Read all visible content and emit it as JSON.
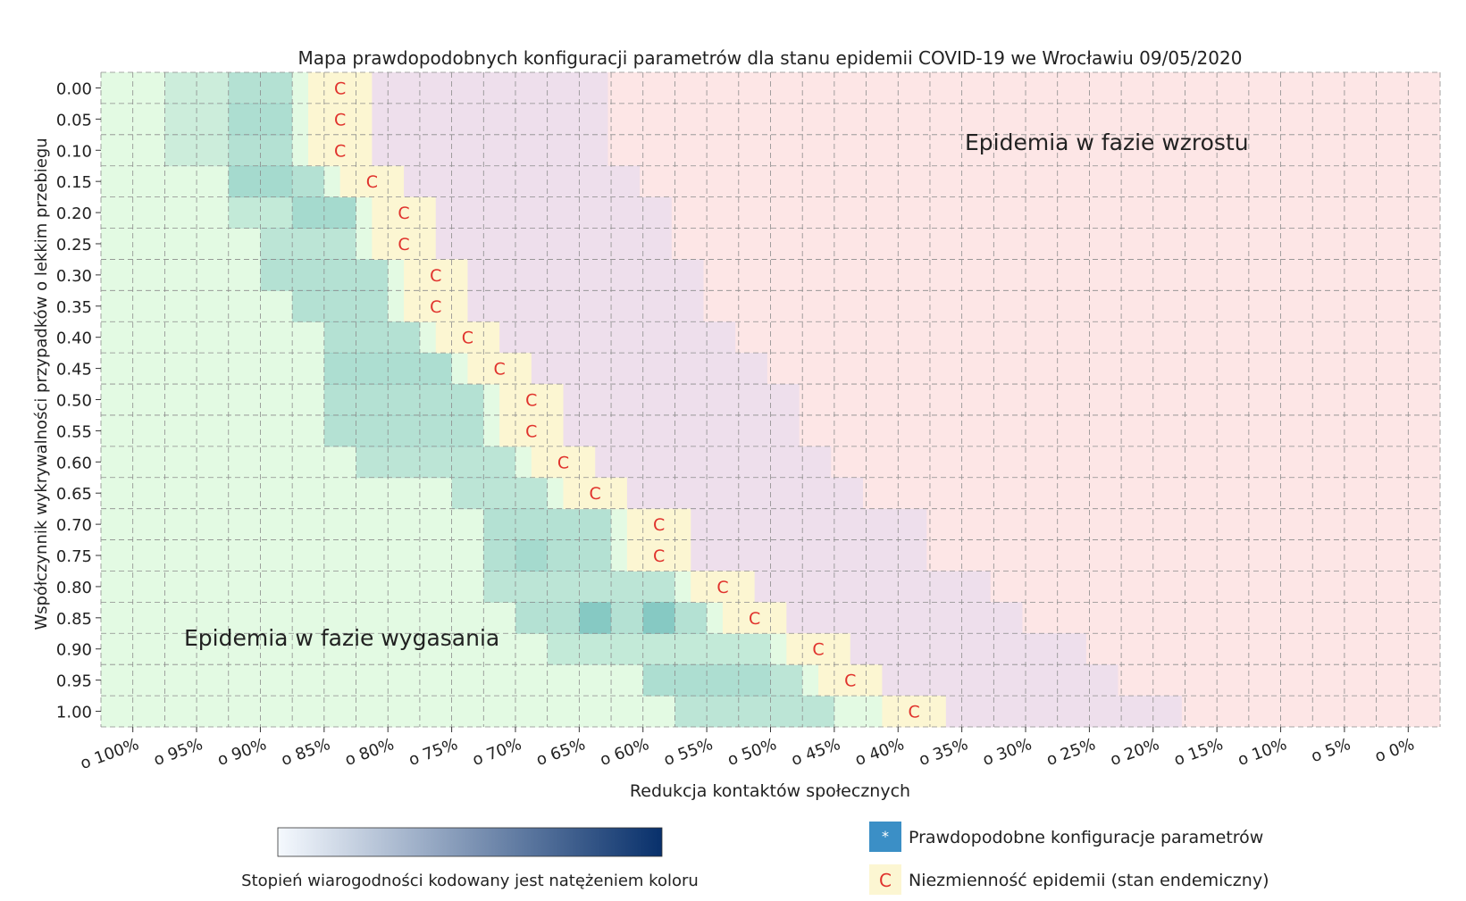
{
  "chart_data": {
    "type": "heatmap",
    "title": "Mapa prawdopodobnych konfiguracji parametrów dla stanu epidemii COVID-19 we Wrocławiu 09/05/2020",
    "xlabel": "Redukcja kontaktów społecznych",
    "ylabel": "Współczynnik wykrywalności przypadków o lekkim przebiegu",
    "x_tick_labels": [
      "o 100%",
      "o 95%",
      "o 90%",
      "o 85%",
      "o 80%",
      "o 75%",
      "o 70%",
      "o 65%",
      "o 60%",
      "o 55%",
      "o 50%",
      "o 45%",
      "o 40%",
      "o 35%",
      "o 30%",
      "o 25%",
      "o 20%",
      "o 15%",
      "o 10%",
      "o 5%",
      "o 0%"
    ],
    "x_values": [
      100,
      95,
      90,
      85,
      80,
      75,
      70,
      65,
      60,
      55,
      50,
      45,
      40,
      35,
      30,
      25,
      20,
      15,
      10,
      5,
      0
    ],
    "y_tick_labels": [
      "0.00",
      "0.05",
      "0.10",
      "0.15",
      "0.20",
      "0.25",
      "0.30",
      "0.35",
      "0.40",
      "0.45",
      "0.50",
      "0.55",
      "0.60",
      "0.65",
      "0.70",
      "0.75",
      "0.80",
      "0.85",
      "0.90",
      "0.95",
      "1.00"
    ],
    "y_values": [
      0.0,
      0.05,
      0.1,
      0.15,
      0.2,
      0.25,
      0.3,
      0.35,
      0.4,
      0.45,
      0.5,
      0.55,
      0.6,
      0.65,
      0.7,
      0.75,
      0.8,
      0.85,
      0.9,
      0.95,
      1.0
    ],
    "endemic_boundary_reduction": [
      83.75,
      83.75,
      83.75,
      81.25,
      78.75,
      78.75,
      76.25,
      76.25,
      73.75,
      71.25,
      68.75,
      68.75,
      66.25,
      63.75,
      58.75,
      58.75,
      53.75,
      51.25,
      46.25,
      43.75,
      38.75
    ],
    "endemic_marker": "C",
    "region_labels": {
      "growth": "Epidemia w fazie wzrostu",
      "decline": "Epidemia w fazie wygasania"
    },
    "likelihood_cells": [
      {
        "y": 0.0,
        "x_from": 95,
        "x_to": 90,
        "level": 0.15
      },
      {
        "y": 0.0,
        "x_from": 90,
        "x_to": 85,
        "level": 0.3
      },
      {
        "y": 0.05,
        "x_from": 95,
        "x_to": 90,
        "level": 0.15
      },
      {
        "y": 0.05,
        "x_from": 90,
        "x_to": 85,
        "level": 0.35
      },
      {
        "y": 0.1,
        "x_from": 95,
        "x_to": 90,
        "level": 0.15
      },
      {
        "y": 0.1,
        "x_from": 90,
        "x_to": 85,
        "level": 0.3
      },
      {
        "y": 0.15,
        "x_from": 90,
        "x_to": 85,
        "level": 0.4
      },
      {
        "y": 0.15,
        "x_from": 85,
        "x_to": 82.5,
        "level": 0.3
      },
      {
        "y": 0.2,
        "x_from": 90,
        "x_to": 85,
        "level": 0.2
      },
      {
        "y": 0.2,
        "x_from": 85,
        "x_to": 80,
        "level": 0.4
      },
      {
        "y": 0.25,
        "x_from": 87.5,
        "x_to": 80,
        "level": 0.25
      },
      {
        "y": 0.3,
        "x_from": 87.5,
        "x_to": 77.5,
        "level": 0.3
      },
      {
        "y": 0.35,
        "x_from": 85,
        "x_to": 77.5,
        "level": 0.3
      },
      {
        "y": 0.4,
        "x_from": 82.5,
        "x_to": 75,
        "level": 0.3
      },
      {
        "y": 0.45,
        "x_from": 82.5,
        "x_to": 72.5,
        "level": 0.35
      },
      {
        "y": 0.5,
        "x_from": 82.5,
        "x_to": 70,
        "level": 0.3
      },
      {
        "y": 0.55,
        "x_from": 82.5,
        "x_to": 70,
        "level": 0.3
      },
      {
        "y": 0.6,
        "x_from": 80,
        "x_to": 67.5,
        "level": 0.25
      },
      {
        "y": 0.65,
        "x_from": 72.5,
        "x_to": 65,
        "level": 0.25
      },
      {
        "y": 0.7,
        "x_from": 70,
        "x_to": 60,
        "level": 0.3
      },
      {
        "y": 0.75,
        "x_from": 70,
        "x_to": 67.5,
        "level": 0.3
      },
      {
        "y": 0.75,
        "x_from": 67.5,
        "x_to": 65,
        "level": 0.4
      },
      {
        "y": 0.75,
        "x_from": 65,
        "x_to": 60,
        "level": 0.3
      },
      {
        "y": 0.8,
        "x_from": 70,
        "x_to": 55,
        "level": 0.25
      },
      {
        "y": 0.85,
        "x_from": 67.5,
        "x_to": 62.5,
        "level": 0.3
      },
      {
        "y": 0.85,
        "x_from": 62.5,
        "x_to": 60,
        "level": 0.6
      },
      {
        "y": 0.85,
        "x_from": 60,
        "x_to": 57.5,
        "level": 0.3
      },
      {
        "y": 0.85,
        "x_from": 57.5,
        "x_to": 55,
        "level": 0.6
      },
      {
        "y": 0.85,
        "x_from": 55,
        "x_to": 52.5,
        "level": 0.3
      },
      {
        "y": 0.9,
        "x_from": 65,
        "x_to": 47.5,
        "level": 0.2
      },
      {
        "y": 0.95,
        "x_from": 57.5,
        "x_to": 47.5,
        "level": 0.35
      },
      {
        "y": 0.95,
        "x_from": 47.5,
        "x_to": 45,
        "level": 0.25
      },
      {
        "y": 1.0,
        "x_from": 55,
        "x_to": 42.5,
        "level": 0.25
      }
    ],
    "colorbar": {
      "label": "Stopień wiarogodności kodowany jest natężeniem koloru",
      "colors": [
        "#f5f9fe",
        "#08306b"
      ]
    },
    "legend": {
      "placement": "bottom-right",
      "items": [
        {
          "marker": "*",
          "label": "Prawdopodobne konfiguracje parametrów"
        },
        {
          "marker": "C",
          "label": "Niezmienność epidemii (stan endemiczny)"
        }
      ]
    },
    "colors": {
      "growth_region": "#fde6e6",
      "decline_region": "#e3fae3",
      "transition_band": "#eedfec",
      "endemic_cell": "#fcf6d2",
      "likelihood_tint": "#48a9ae",
      "endemic_marker": "#e0322c",
      "legend_star_box": "#3b8fc6",
      "grid_line": "#8c8c8c"
    }
  }
}
